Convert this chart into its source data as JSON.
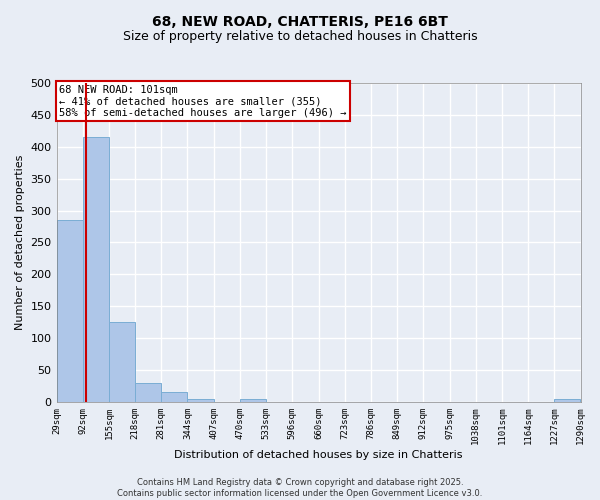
{
  "title": "68, NEW ROAD, CHATTERIS, PE16 6BT",
  "subtitle": "Size of property relative to detached houses in Chatteris",
  "xlabel": "Distribution of detached houses by size in Chatteris",
  "ylabel": "Number of detached properties",
  "bin_edges": [
    29,
    92,
    155,
    218,
    281,
    344,
    407,
    470,
    533,
    596,
    660,
    723,
    786,
    849,
    912,
    975,
    1038,
    1101,
    1164,
    1227,
    1290
  ],
  "bar_heights": [
    285,
    415,
    125,
    30,
    15,
    5,
    0,
    5,
    0,
    0,
    0,
    0,
    0,
    0,
    0,
    0,
    0,
    0,
    0,
    5
  ],
  "bar_color": "#aec6e8",
  "bar_edgecolor": "#7aadd4",
  "vline_x": 101,
  "vline_color": "#cc0000",
  "annotation_text": "68 NEW ROAD: 101sqm\n← 41% of detached houses are smaller (355)\n58% of semi-detached houses are larger (496) →",
  "annotation_fontsize": 7.5,
  "annotation_boxcolor": "white",
  "annotation_edgecolor": "#cc0000",
  "ylim": [
    0,
    500
  ],
  "yticks": [
    0,
    50,
    100,
    150,
    200,
    250,
    300,
    350,
    400,
    450,
    500
  ],
  "background_color": "#e8edf5",
  "grid_color": "white",
  "title_fontsize": 10,
  "subtitle_fontsize": 9,
  "footer_text": "Contains HM Land Registry data © Crown copyright and database right 2025.\nContains public sector information licensed under the Open Government Licence v3.0."
}
